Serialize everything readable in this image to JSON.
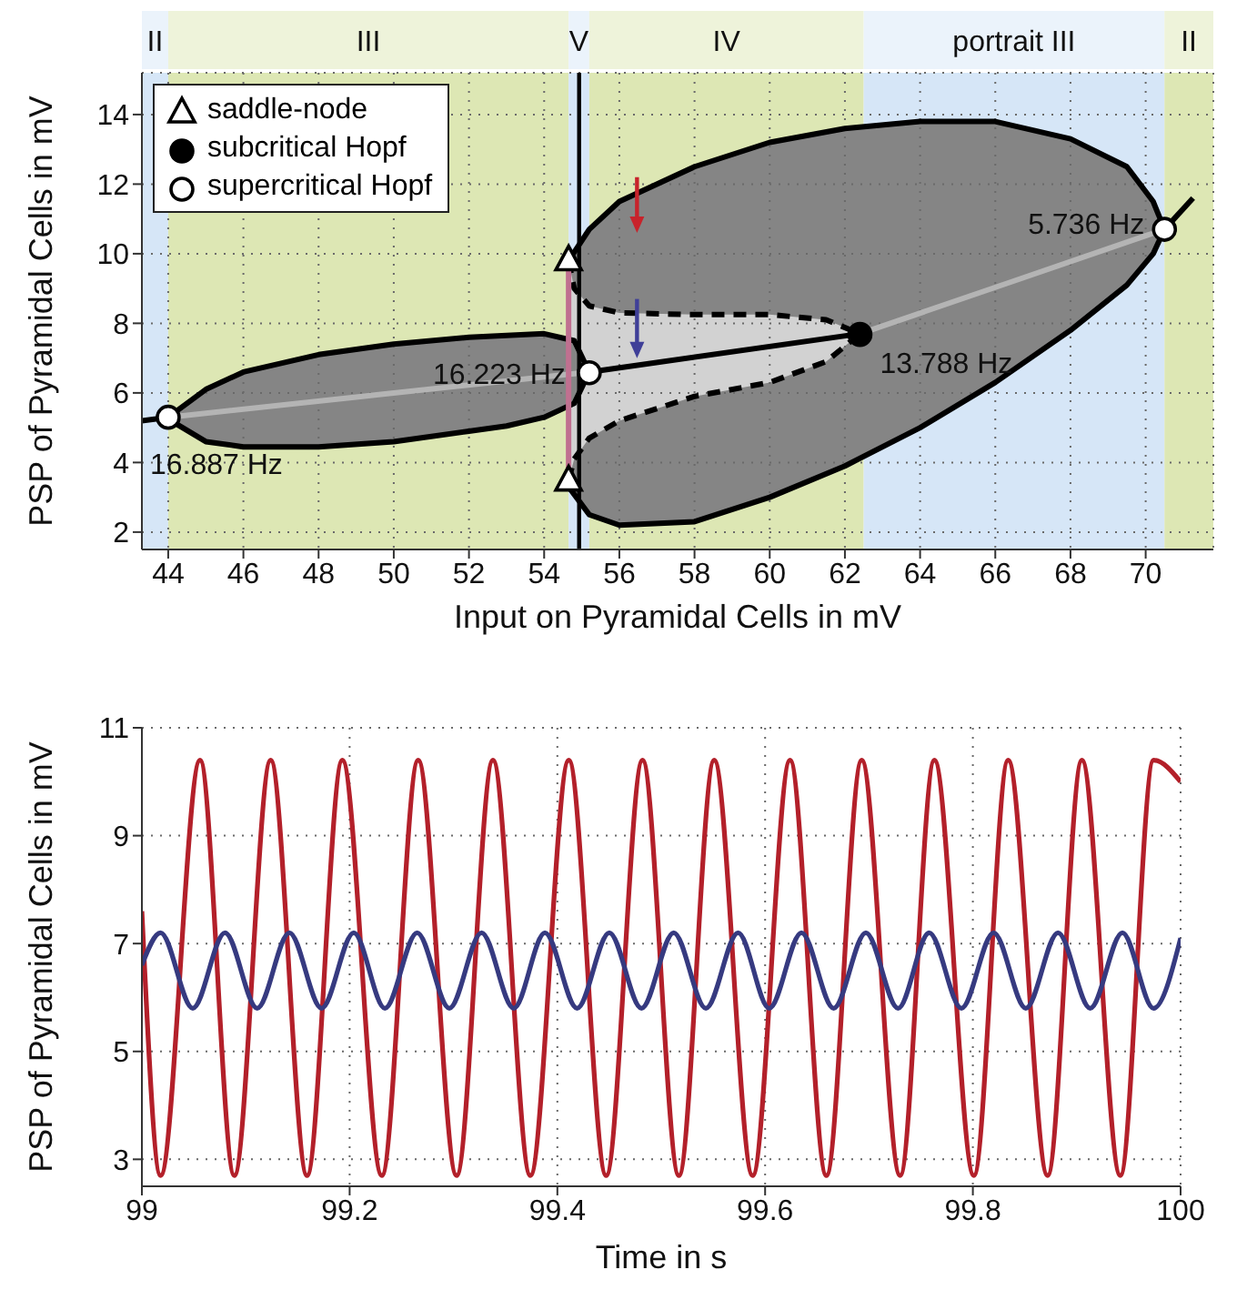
{
  "chart_data": [
    {
      "type": "line",
      "xlabel": "Input on Pyramidal Cells in mV",
      "ylabel": "PSP of Pyramidal Cells in mV",
      "xlim": [
        43.3,
        71.8
      ],
      "ylim": [
        1.5,
        15.2
      ],
      "xticks": [
        44,
        46,
        48,
        50,
        52,
        54,
        56,
        58,
        60,
        62,
        64,
        66,
        68,
        70
      ],
      "yticks": [
        2,
        4,
        6,
        8,
        10,
        12,
        14
      ],
      "grid": true,
      "legend": "top left",
      "bands": [
        {
          "axis": "x",
          "from": 43.3,
          "to": 44.0,
          "label": "II",
          "color": "#d6e6f7"
        },
        {
          "axis": "x",
          "from": 44.0,
          "to": 54.65,
          "label": "III",
          "color": "#dde7b4"
        },
        {
          "axis": "x",
          "from": 54.65,
          "to": 55.2,
          "label": "V",
          "color": "#d6e6f7"
        },
        {
          "axis": "x",
          "from": 55.2,
          "to": 62.5,
          "label": "IV",
          "color": "#dde7b4"
        },
        {
          "axis": "x",
          "from": 62.5,
          "to": 70.5,
          "label": "portrait III",
          "color": "#d6e6f7"
        },
        {
          "axis": "x",
          "from": 70.5,
          "to": 71.8,
          "label": "II",
          "color": "#dde7b4"
        }
      ],
      "ref_lines": [
        {
          "axis": "x",
          "value": 54.93,
          "color": "#000000"
        }
      ],
      "series": [
        {
          "color": "#000000",
          "x": [
            54.65,
            55.2,
            56,
            58,
            60,
            62,
            64,
            66,
            68,
            69.5,
            70.2,
            70.5,
            70.2,
            69.5,
            68,
            66,
            64,
            62,
            60,
            58,
            56,
            55.2,
            54.65
          ],
          "values": [
            9.8,
            10.7,
            11.5,
            12.5,
            13.2,
            13.6,
            13.8,
            13.8,
            13.3,
            12.5,
            11.5,
            10.7,
            10.0,
            9.1,
            7.8,
            6.3,
            5.0,
            3.9,
            3.0,
            2.3,
            2.2,
            2.5,
            3.3
          ]
        },
        {
          "color": "#000000",
          "line_style": "dashed",
          "x": [
            54.65,
            54.8,
            55.2,
            56,
            58,
            60,
            61.5,
            62.4,
            61.5,
            60,
            58,
            56,
            55.2,
            54.8,
            54.65
          ],
          "values": [
            9.8,
            9.0,
            8.5,
            8.3,
            8.25,
            8.25,
            8.1,
            7.7,
            6.9,
            6.3,
            5.9,
            5.2,
            4.7,
            4.1,
            3.5
          ]
        },
        {
          "color": "#000000",
          "x": [
            44.0,
            45,
            46,
            48,
            50,
            52,
            53,
            54,
            54.8,
            55.2,
            54.8,
            54,
            53,
            52,
            50,
            48,
            46,
            45,
            44.15
          ],
          "values": [
            5.3,
            6.1,
            6.6,
            7.1,
            7.4,
            7.6,
            7.65,
            7.7,
            7.5,
            6.6,
            5.7,
            5.3,
            5.05,
            4.9,
            4.6,
            4.45,
            4.45,
            4.6,
            5.15
          ]
        },
        {
          "color": "#b4b4b4",
          "x": [
            44.0,
            49.6,
            55.2
          ],
          "values": [
            5.3,
            5.95,
            6.6
          ]
        },
        {
          "color": "#b4b4b4",
          "x": [
            62.4,
            66.45,
            70.5
          ],
          "values": [
            7.7,
            9.2,
            10.7
          ]
        },
        {
          "color": "#c07090",
          "x": [
            54.65,
            54.65
          ],
          "values": [
            3.5,
            9.8
          ]
        },
        {
          "color": "#000000",
          "x": [
            43.3,
            44.0
          ],
          "values": [
            5.2,
            5.3
          ]
        },
        {
          "color": "#000000",
          "x": [
            55.2,
            62.4
          ],
          "values": [
            6.6,
            7.7
          ]
        },
        {
          "color": "#000000",
          "x": [
            70.5,
            71.26
          ],
          "values": [
            10.7,
            11.6
          ]
        },
        {
          "type": "scatter",
          "name": "saddle-node",
          "marker": "triangle",
          "color": "#ffffff",
          "x": [
            54.65,
            54.65
          ],
          "values": [
            9.8,
            3.47
          ]
        },
        {
          "type": "scatter",
          "name": "subcritical Hopf",
          "marker": "circle",
          "color": "#000000",
          "x": [
            62.4
          ],
          "values": [
            7.68
          ]
        },
        {
          "type": "scatter",
          "name": "supercritical Hopf",
          "marker": "circle",
          "color": "#ffffff",
          "x": [
            44.0,
            55.2,
            70.5
          ],
          "values": [
            5.3,
            6.58,
            10.7
          ]
        }
      ],
      "annotations": [
        {
          "text": "16.887 Hz",
          "x": 44.0,
          "y": 5.3
        },
        {
          "text": "16.223 Hz",
          "x": 55.2,
          "y": 6.58
        },
        {
          "text": "13.788 Hz",
          "x": 62.4,
          "y": 7.68
        },
        {
          "text": "5.736 Hz",
          "x": 70.5,
          "y": 10.7
        }
      ]
    },
    {
      "type": "line",
      "xlabel": "Time in s",
      "ylabel": "PSP of Pyramidal Cells in mV",
      "xlim": [
        99,
        100
      ],
      "ylim": [
        2.5,
        11
      ],
      "xticks": [
        99,
        {
          "value": 99.2,
          "label": "99.2"
        },
        {
          "value": 99.4,
          "label": "99.4"
        },
        {
          "value": 99.6,
          "label": "99.6"
        },
        {
          "value": 99.8,
          "label": "99.8"
        },
        100
      ],
      "yticks": [
        3,
        5,
        7,
        9,
        11
      ],
      "grid": true,
      "series": [
        {
          "color": "#b3202a",
          "x": [
            99,
            99.018,
            99.056,
            99.089,
            99.124,
            99.159,
            99.193,
            99.231,
            99.266,
            99.303,
            99.338,
            99.374,
            99.411,
            99.447,
            99.482,
            99.517,
            99.551,
            99.588,
            99.624,
            99.659,
            99.693,
            99.73,
            99.763,
            99.801,
            99.834,
            99.872,
            99.905,
            99.942,
            99.974,
            100
          ],
          "values": [
            7.6,
            2.7,
            10.4,
            2.7,
            10.4,
            2.7,
            10.4,
            2.7,
            10.4,
            2.7,
            10.4,
            2.7,
            10.4,
            2.7,
            10.4,
            2.7,
            10.4,
            2.7,
            10.4,
            2.7,
            10.4,
            2.7,
            10.4,
            2.7,
            10.4,
            2.7,
            10.4,
            2.7,
            10.4,
            10.0
          ]
        },
        {
          "color": "#363a80",
          "x": [
            99,
            99.018,
            99.049,
            99.08,
            99.111,
            99.142,
            99.173,
            99.204,
            99.234,
            99.265,
            99.296,
            99.327,
            99.358,
            99.388,
            99.419,
            99.45,
            99.481,
            99.512,
            99.543,
            99.574,
            99.604,
            99.635,
            99.666,
            99.697,
            99.728,
            99.758,
            99.789,
            99.82,
            99.851,
            99.882,
            99.913,
            99.944,
            99.974,
            100
          ],
          "values": [
            6.6,
            7.2,
            5.8,
            7.2,
            5.8,
            7.2,
            5.8,
            7.2,
            5.8,
            7.2,
            5.8,
            7.2,
            5.8,
            7.2,
            5.8,
            7.2,
            5.8,
            7.2,
            5.8,
            7.2,
            5.8,
            7.2,
            5.8,
            7.2,
            5.8,
            7.2,
            5.8,
            7.2,
            5.8,
            7.2,
            5.8,
            7.2,
            5.8,
            7.1
          ]
        }
      ]
    }
  ]
}
